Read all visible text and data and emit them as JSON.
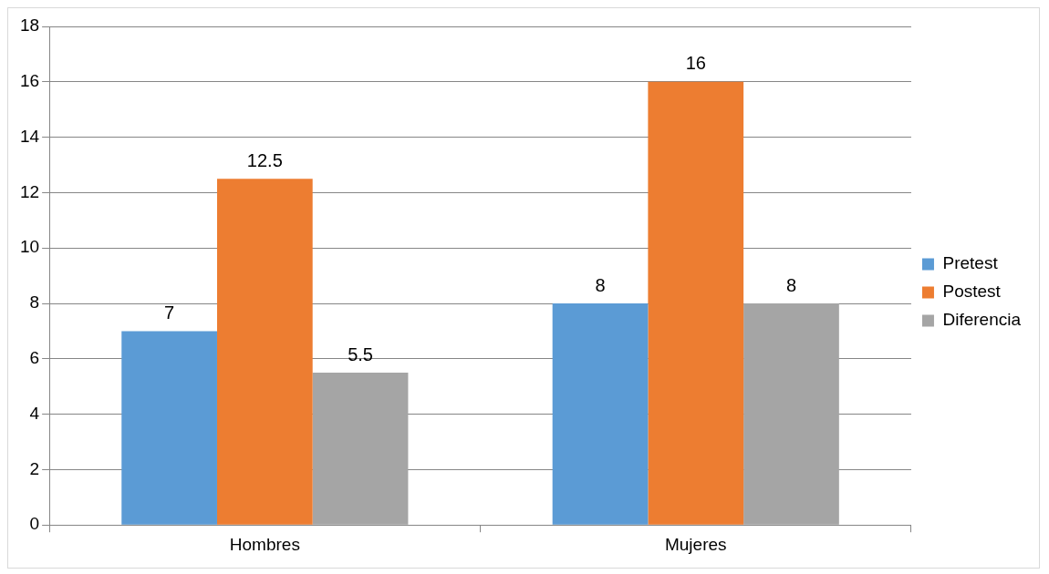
{
  "chart_data": {
    "type": "bar",
    "categories": [
      "Hombres",
      "Mujeres"
    ],
    "series": [
      {
        "name": "Pretest",
        "color": "#5b9bd5",
        "values": [
          7,
          8
        ]
      },
      {
        "name": "Postest",
        "color": "#ed7d31",
        "values": [
          12.5,
          16
        ]
      },
      {
        "name": "Diferencia",
        "color": "#a5a5a5",
        "values": [
          5.5,
          8
        ]
      }
    ],
    "ylim": [
      0,
      18
    ],
    "yticks": [
      0,
      2,
      4,
      6,
      8,
      10,
      12,
      14,
      16,
      18
    ],
    "grid": "y",
    "legend": "right",
    "data_labels": true
  }
}
